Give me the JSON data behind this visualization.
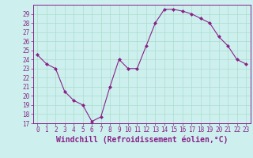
{
  "x": [
    0,
    1,
    2,
    3,
    4,
    5,
    6,
    7,
    8,
    9,
    10,
    11,
    12,
    13,
    14,
    15,
    16,
    17,
    18,
    19,
    20,
    21,
    22,
    23
  ],
  "y": [
    24.5,
    23.5,
    23.0,
    20.5,
    19.5,
    19.0,
    17.2,
    17.7,
    21.0,
    24.0,
    23.0,
    23.0,
    25.5,
    28.0,
    29.5,
    29.5,
    29.3,
    29.0,
    28.5,
    28.0,
    26.5,
    25.5,
    24.0,
    23.5
  ],
  "line_color": "#882288",
  "marker": "D",
  "marker_size": 2,
  "bg_color": "#cdf0ee",
  "grid_color": "#aaddcc",
  "xlabel": "Windchill (Refroidissement éolien,°C)",
  "ylabel": "",
  "ylim": [
    17,
    30
  ],
  "xlim": [
    -0.5,
    23.5
  ],
  "yticks": [
    17,
    18,
    19,
    20,
    21,
    22,
    23,
    24,
    25,
    26,
    27,
    28,
    29
  ],
  "xticks": [
    0,
    1,
    2,
    3,
    4,
    5,
    6,
    7,
    8,
    9,
    10,
    11,
    12,
    13,
    14,
    15,
    16,
    17,
    18,
    19,
    20,
    21,
    22,
    23
  ],
  "tick_label_fontsize": 5.5,
  "xlabel_fontsize": 7.0,
  "label_color": "#882288",
  "axis_color": "#882288"
}
